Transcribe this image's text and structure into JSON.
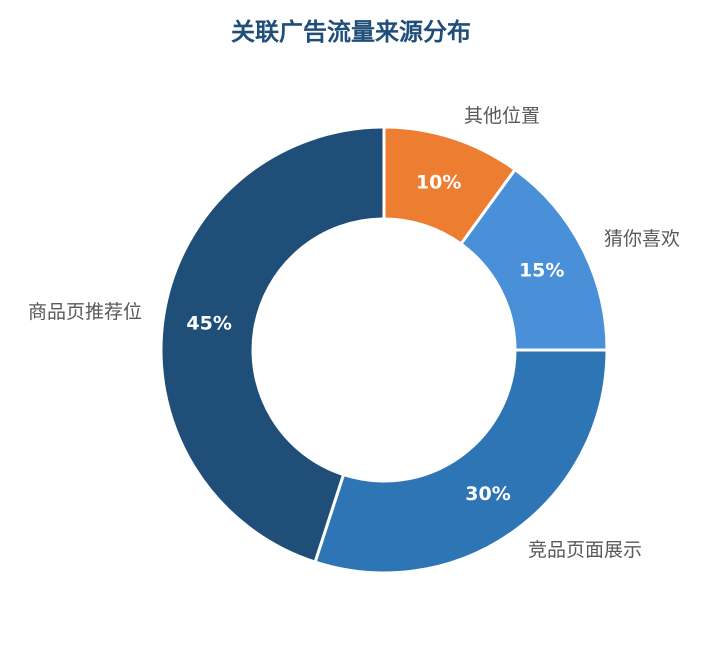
{
  "chart_data": {
    "type": "pie",
    "title": "关联广告流量来源分布",
    "donut": true,
    "slices": [
      {
        "label": "其他位置",
        "value": 10,
        "display": "10%",
        "color": "#ed7d31"
      },
      {
        "label": "猜你喜欢",
        "value": 15,
        "display": "15%",
        "color": "#4a90d9"
      },
      {
        "label": "竞品页面展示",
        "value": 30,
        "display": "30%",
        "color": "#2e75b6"
      },
      {
        "label": "商品页推荐位",
        "value": 45,
        "display": "45%",
        "color": "#1f4e79"
      }
    ],
    "legend": "none"
  }
}
